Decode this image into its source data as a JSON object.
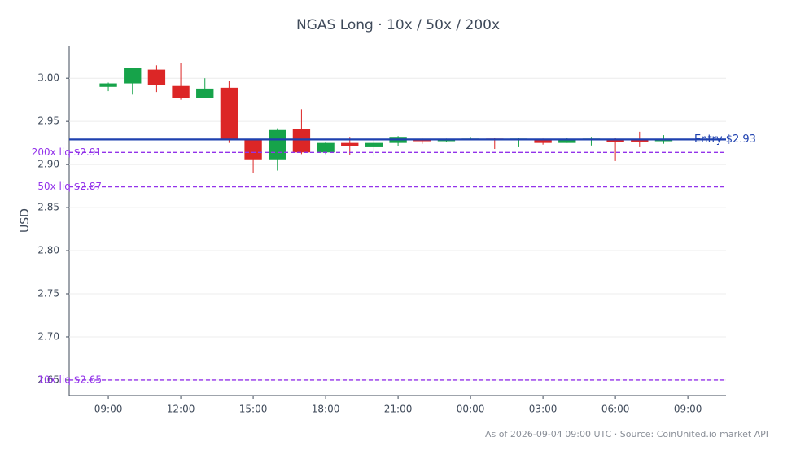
{
  "chart_data": {
    "type": "candlestick",
    "title": "NGAS Long · 10x / 50x / 200x",
    "ylabel": "USD",
    "footnote": "As of 2026-09-04 09:00 UTC · Source: CoinUnited.io market API",
    "x": [
      0,
      1,
      2,
      3,
      4,
      5,
      6,
      7,
      8,
      9,
      10,
      11,
      12,
      13,
      14,
      15,
      16,
      17,
      18,
      19,
      20,
      21,
      22,
      23
    ],
    "open": [
      2.99,
      2.994,
      3.01,
      2.991,
      2.977,
      2.989,
      2.929,
      2.906,
      2.941,
      2.914,
      2.925,
      2.92,
      2.925,
      2.929,
      2.927,
      2.929,
      2.93,
      2.929,
      2.929,
      2.925,
      2.929,
      2.929,
      2.928,
      2.927
    ],
    "high": [
      2.995,
      3.012,
      3.015,
      3.018,
      3.0,
      2.997,
      2.929,
      2.942,
      2.964,
      2.926,
      2.932,
      2.928,
      2.933,
      2.93,
      2.93,
      2.932,
      2.931,
      2.931,
      2.93,
      2.931,
      2.932,
      2.931,
      2.938,
      2.934
    ],
    "low": [
      2.985,
      2.981,
      2.984,
      2.975,
      2.977,
      2.925,
      2.89,
      2.893,
      2.912,
      2.912,
      2.911,
      2.91,
      2.921,
      2.924,
      2.926,
      2.928,
      2.918,
      2.92,
      2.923,
      2.925,
      2.922,
      2.904,
      2.92,
      2.924
    ],
    "close": [
      2.994,
      3.012,
      2.992,
      2.977,
      2.988,
      2.929,
      2.906,
      2.94,
      2.914,
      2.925,
      2.921,
      2.925,
      2.932,
      2.927,
      2.929,
      2.93,
      2.929,
      2.93,
      2.925,
      2.929,
      2.93,
      2.926,
      2.927,
      2.929
    ],
    "up_color": "#16a34a",
    "down_color": "#dc2626",
    "xlim": [
      -1.62,
      25.58
    ],
    "xticks": [
      {
        "value": 0,
        "label": "09:00"
      },
      {
        "value": 3,
        "label": "12:00"
      },
      {
        "value": 6,
        "label": "15:00"
      },
      {
        "value": 9,
        "label": "18:00"
      },
      {
        "value": 12,
        "label": "21:00"
      },
      {
        "value": 15,
        "label": "00:00"
      },
      {
        "value": 18,
        "label": "03:00"
      },
      {
        "value": 21,
        "label": "06:00"
      },
      {
        "value": 24,
        "label": "09:00"
      }
    ],
    "ylim": [
      2.632,
      3.037
    ],
    "yticks": [
      2.65,
      {
        "value": 2.7,
        "label": "2.70"
      },
      2.75,
      {
        "value": 2.8,
        "label": "2.80"
      },
      2.85,
      {
        "value": 2.9,
        "label": "2.90"
      },
      2.95,
      {
        "value": 3,
        "label": "3.00"
      }
    ],
    "grid": true,
    "lines": [
      {
        "label": "Entry $2.93",
        "value": 2.929,
        "color": "#1e40af",
        "style": "solid"
      },
      {
        "label": "200x liq $2.91",
        "value": 2.914,
        "color": "#9333ea",
        "style": "dashed"
      },
      {
        "label": "50x liq $2.87",
        "value": 2.874,
        "color": "#9333ea",
        "style": "dashed"
      },
      {
        "label": "10x liq $2.65",
        "value": 2.65,
        "color": "#9333ea",
        "style": "dashed"
      }
    ]
  }
}
